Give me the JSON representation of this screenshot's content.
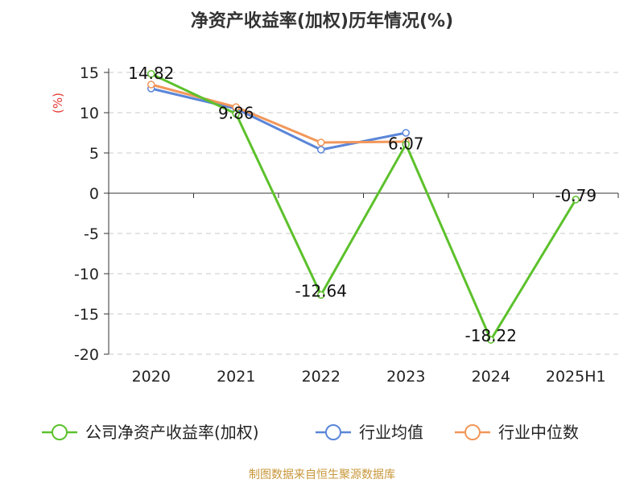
{
  "chart_data": {
    "type": "line",
    "title": "净资产收益率(加权)历年情况(%)",
    "ylabel": "(%)",
    "categories": [
      "2020",
      "2021",
      "2022",
      "2023",
      "2024",
      "2025H1"
    ],
    "ylim": [
      -20,
      15
    ],
    "yticks": [
      15,
      10,
      5,
      0,
      -5,
      -10,
      -15,
      -20
    ],
    "grid": true,
    "legend_position": "bottom",
    "series": [
      {
        "name": "公司净资产收益率(加权)",
        "color": "#5cc12b",
        "values": [
          14.82,
          9.86,
          -12.64,
          6.07,
          -18.22,
          -0.79
        ],
        "labels": [
          "14.82",
          "9.86",
          "-12.64",
          "6.07",
          "-18.22",
          "-0.79"
        ]
      },
      {
        "name": "行业均值",
        "color": "#5b86d9",
        "values": [
          13.0,
          10.5,
          5.4,
          7.5,
          null,
          null
        ]
      },
      {
        "name": "行业中位数",
        "color": "#f2975a",
        "values": [
          13.5,
          10.7,
          6.3,
          6.4,
          null,
          null
        ]
      }
    ]
  },
  "source_text": "制图数据来自恒生聚源数据库"
}
